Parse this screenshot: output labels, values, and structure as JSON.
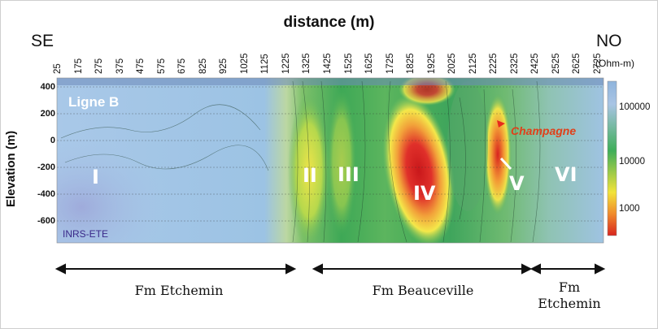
{
  "title": "distance (m)",
  "left_label": "SE",
  "right_label": "NO",
  "y_axis_label": "Elevation (m)",
  "x_ticks": [
    "25",
    "175",
    "275",
    "375",
    "475",
    "575",
    "675",
    "825",
    "925",
    "1025",
    "1125",
    "1225",
    "1325",
    "1425",
    "1525",
    "1625",
    "1725",
    "1825",
    "1925",
    "2025",
    "2125",
    "2225",
    "2325",
    "2425",
    "2525",
    "2625",
    "2725"
  ],
  "y_ticks": [
    "400",
    "200",
    "0",
    "-200",
    "-400",
    "-600"
  ],
  "colorbar": {
    "unit": "(Ohm-m)",
    "ticks": [
      "100000",
      "10000",
      "1000"
    ],
    "colors": [
      "#8fb4dc",
      "#3fae59",
      "#f2e33a",
      "#d8251f"
    ]
  },
  "line_label": "Ligne B",
  "zones": [
    "I",
    "II",
    "III",
    "IV",
    "V",
    "VI"
  ],
  "annotation": "Champagne",
  "credit": "INRS-ETE",
  "formations": [
    "Fm Etchemin",
    "Fm Beauceville",
    "Fm",
    "Etchemin"
  ]
}
